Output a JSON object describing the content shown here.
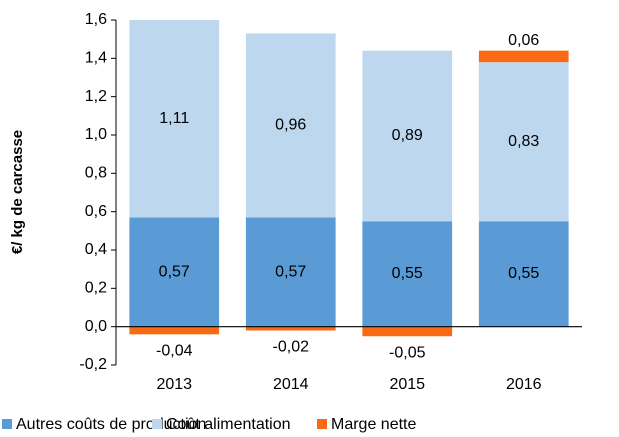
{
  "chart_data": {
    "type": "stacked_bar",
    "y_label": "€/ kg de carcasse",
    "categories": [
      "2013",
      "2014",
      "2015",
      "2016"
    ],
    "series": [
      {
        "name": "Autres coûts de production",
        "color": "#5b9bd5",
        "label_color": "#ffffff",
        "values": [
          0.57,
          0.57,
          0.55,
          0.55
        ],
        "value_labels": [
          "0,57",
          "0,57",
          "0,55",
          "0,55"
        ]
      },
      {
        "name": "Coût alimentation",
        "color": "#bdd7ee",
        "label_color": "#000000",
        "values": [
          1.11,
          0.96,
          0.89,
          0.83
        ],
        "value_labels": [
          "1,11",
          "0,96",
          "0,89",
          "0,83"
        ]
      },
      {
        "name": "Marge nette",
        "color": "#fa6a14",
        "label_color": "#ff0000",
        "values": [
          -0.04,
          -0.02,
          -0.05,
          0.06
        ],
        "value_labels": [
          "-0,04",
          "-0,02",
          "-0,05",
          "0,06"
        ]
      }
    ],
    "ylim": [
      -0.2,
      1.6
    ],
    "yticks": [
      {
        "value": -0.2,
        "label": "-0,2"
      },
      {
        "value": 0,
        "label": "0,0"
      },
      {
        "value": 0.2,
        "label": "0,2"
      },
      {
        "value": 0.4,
        "label": "0,4"
      },
      {
        "value": 0.6,
        "label": "0,6"
      },
      {
        "value": 0.8,
        "label": "0,8"
      },
      {
        "value": 1.0,
        "label": "1,0"
      },
      {
        "value": 1.2,
        "label": "1,2"
      },
      {
        "value": 1.4,
        "label": "1,4"
      },
      {
        "value": 1.6,
        "label": "1,6"
      }
    ],
    "grid": false,
    "legend": "bottom"
  }
}
